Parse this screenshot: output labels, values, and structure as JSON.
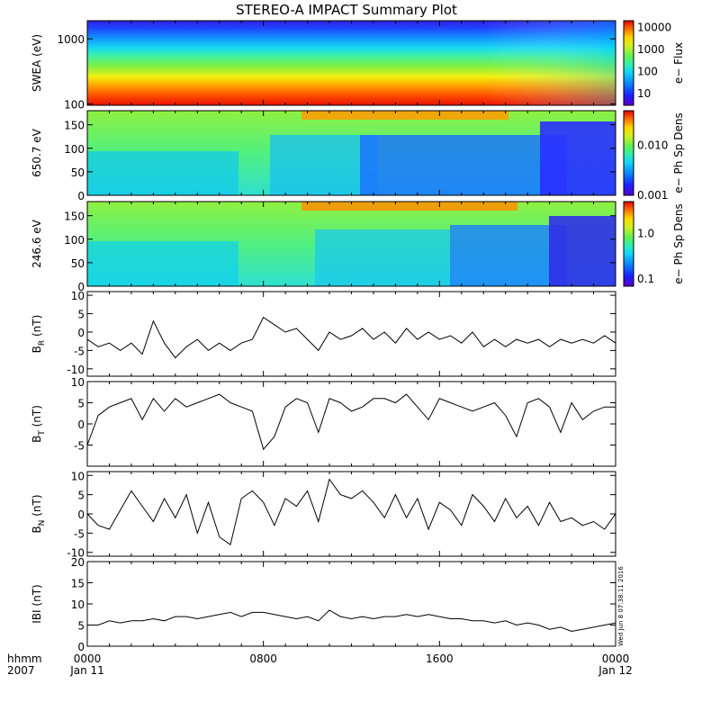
{
  "title": "STEREO-A IMPACT Summary Plot",
  "stamp": "Wed Jun  8 07:38:11 2016",
  "time_axis": {
    "label_lines": [
      "hhmm",
      "2007"
    ],
    "ticks": [
      {
        "hour": 0,
        "lines": [
          "0000",
          "Jan 11"
        ]
      },
      {
        "hour": 8,
        "lines": [
          "0800",
          ""
        ]
      },
      {
        "hour": 16,
        "lines": [
          "1600",
          ""
        ]
      },
      {
        "hour": 24,
        "lines": [
          "0000",
          "Jan 12"
        ]
      }
    ]
  },
  "colors": {
    "line": "#000000",
    "spectrum": [
      "#7a00d6",
      "#2a1cff",
      "#0a78ff",
      "#11c8ff",
      "#2ff0c0",
      "#60f060",
      "#c8f020",
      "#ffe000",
      "#ffa000",
      "#ff3a00",
      "#d80000"
    ]
  },
  "chart_data": [
    {
      "type": "heatmap",
      "ylabel": "SWEA (eV)",
      "yscale": "log",
      "yticks": [
        "100",
        "1000"
      ],
      "ylim": [
        95,
        1900
      ],
      "colorbar": {
        "label": "e− Flux",
        "ticks": [
          "10",
          "100",
          "1000",
          "10000"
        ],
        "scale": "log",
        "range": [
          3,
          20000
        ]
      },
      "x": [
        0,
        4,
        8,
        12,
        16,
        20,
        24
      ],
      "description_values": "Flux highest (red, ~10000) below ~250 eV, green (~100-1000) near 400-800 eV, blue (~10) above 1000 eV"
    },
    {
      "type": "heatmap",
      "ylabel": "650.7 eV",
      "yticks": [
        "0",
        "50",
        "100",
        "150"
      ],
      "ylim": [
        0,
        180
      ],
      "colorbar": {
        "label": "e− Ph Sp Dens",
        "ticks": [
          "0.001",
          "0.010"
        ],
        "scale": "log",
        "range": [
          0.001,
          0.05
        ]
      },
      "x": [
        0,
        4,
        8,
        12,
        16,
        20,
        24
      ]
    },
    {
      "type": "heatmap",
      "ylabel": "246.6 eV",
      "yticks": [
        "0",
        "50",
        "100",
        "150"
      ],
      "ylim": [
        0,
        180
      ],
      "colorbar": {
        "label": "e− Ph Sp Dens",
        "ticks": [
          "0.1",
          "1.0"
        ],
        "scale": "log",
        "range": [
          0.07,
          5
        ]
      },
      "x": [
        0,
        4,
        8,
        12,
        16,
        20,
        24
      ]
    },
    {
      "type": "line",
      "ylabel": "B_R (nT)",
      "ylabel_main": "B",
      "ylabel_sub": "R",
      "ylabel_unit": "(nT)",
      "ylim": [
        -12,
        11
      ],
      "yticks": [
        "-10",
        "-5",
        "0",
        "5",
        "10"
      ],
      "x": [
        0,
        0.5,
        1,
        1.5,
        2,
        2.5,
        3,
        3.5,
        4,
        4.5,
        5,
        5.5,
        6,
        6.5,
        7,
        7.5,
        8,
        8.5,
        9,
        9.5,
        10,
        10.5,
        11,
        11.5,
        12,
        12.5,
        13,
        13.5,
        14,
        14.5,
        15,
        15.5,
        16,
        16.5,
        17,
        17.5,
        18,
        18.5,
        19,
        19.5,
        20,
        20.5,
        21,
        21.5,
        22,
        22.5,
        23,
        23.5,
        24
      ],
      "y": [
        -2,
        -4,
        -3,
        -5,
        -3,
        -6,
        3,
        -3,
        -7,
        -4,
        -2,
        -5,
        -3,
        -5,
        -3,
        -2,
        4,
        2,
        0,
        1,
        -2,
        -5,
        0,
        -2,
        -1,
        1,
        -2,
        0,
        -3,
        1,
        -2,
        0,
        -2,
        -1,
        -3,
        0,
        -4,
        -2,
        -4,
        -2,
        -3,
        -2,
        -4,
        -2,
        -3,
        -2,
        -3,
        -1,
        -3
      ]
    },
    {
      "type": "line",
      "ylabel": "B_T (nT)",
      "ylabel_main": "B",
      "ylabel_sub": "T",
      "ylabel_unit": "(nT)",
      "ylim": [
        -10,
        10
      ],
      "yticks": [
        "-5",
        "0",
        "5",
        "10"
      ],
      "x": [
        0,
        0.5,
        1,
        1.5,
        2,
        2.5,
        3,
        3.5,
        4,
        4.5,
        5,
        5.5,
        6,
        6.5,
        7,
        7.5,
        8,
        8.5,
        9,
        9.5,
        10,
        10.5,
        11,
        11.5,
        12,
        12.5,
        13,
        13.5,
        14,
        14.5,
        15,
        15.5,
        16,
        16.5,
        17,
        17.5,
        18,
        18.5,
        19,
        19.5,
        20,
        20.5,
        21,
        21.5,
        22,
        22.5,
        23,
        23.5,
        24
      ],
      "y": [
        -5,
        2,
        4,
        5,
        6,
        1,
        6,
        3,
        6,
        4,
        5,
        6,
        7,
        5,
        4,
        3,
        -6,
        -3,
        4,
        6,
        5,
        -2,
        6,
        5,
        3,
        4,
        6,
        6,
        5,
        7,
        4,
        1,
        6,
        5,
        4,
        3,
        4,
        5,
        2,
        -3,
        5,
        6,
        4,
        -2,
        5,
        1,
        3,
        4,
        4
      ]
    },
    {
      "type": "line",
      "ylabel": "B_N (nT)",
      "ylabel_main": "B",
      "ylabel_sub": "N",
      "ylabel_unit": "(nT)",
      "ylim": [
        -11,
        11
      ],
      "yticks": [
        "-10",
        "-5",
        "0",
        "5",
        "10"
      ],
      "x": [
        0,
        0.5,
        1,
        1.5,
        2,
        2.5,
        3,
        3.5,
        4,
        4.5,
        5,
        5.5,
        6,
        6.5,
        7,
        7.5,
        8,
        8.5,
        9,
        9.5,
        10,
        10.5,
        11,
        11.5,
        12,
        12.5,
        13,
        13.5,
        14,
        14.5,
        15,
        15.5,
        16,
        16.5,
        17,
        17.5,
        18,
        18.5,
        19,
        19.5,
        20,
        20.5,
        21,
        21.5,
        22,
        22.5,
        23,
        23.5,
        24
      ],
      "y": [
        0,
        -3,
        -4,
        1,
        6,
        2,
        -2,
        4,
        -1,
        5,
        -5,
        3,
        -6,
        -8,
        4,
        6,
        3,
        -3,
        4,
        2,
        6,
        -2,
        9,
        5,
        4,
        6,
        3,
        -1,
        5,
        -1,
        4,
        -4,
        3,
        1,
        -3,
        5,
        2,
        -2,
        4,
        -1,
        2,
        -3,
        3,
        -2,
        -1,
        -3,
        -2,
        -4,
        0
      ]
    },
    {
      "type": "line",
      "ylabel": "|B| (nT)",
      "ylabel_text": "IBI (nT)",
      "ylim": [
        0,
        20
      ],
      "yticks": [
        "0",
        "5",
        "10",
        "15",
        "20"
      ],
      "x": [
        0,
        0.5,
        1,
        1.5,
        2,
        2.5,
        3,
        3.5,
        4,
        4.5,
        5,
        5.5,
        6,
        6.5,
        7,
        7.5,
        8,
        8.5,
        9,
        9.5,
        10,
        10.5,
        11,
        11.5,
        12,
        12.5,
        13,
        13.5,
        14,
        14.5,
        15,
        15.5,
        16,
        16.5,
        17,
        17.5,
        18,
        18.5,
        19,
        19.5,
        20,
        20.5,
        21,
        21.5,
        22,
        22.5,
        23,
        23.5,
        24
      ],
      "y": [
        5,
        5,
        6,
        5.5,
        6,
        6,
        6.5,
        6,
        7,
        7,
        6.5,
        7,
        7.5,
        8,
        7,
        8,
        8,
        7.5,
        7,
        6.5,
        7,
        6,
        8.5,
        7,
        6.5,
        7,
        6.5,
        7,
        7,
        7.5,
        7,
        7.5,
        7,
        6.5,
        6.5,
        6,
        6,
        5.5,
        6,
        5,
        5.5,
        5,
        4,
        4.5,
        3.5,
        4,
        4.5,
        5,
        5.5
      ]
    }
  ]
}
